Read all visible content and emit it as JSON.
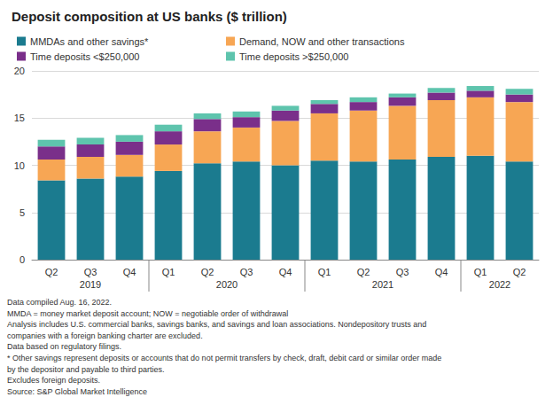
{
  "chart_data": {
    "type": "bar",
    "title": "Deposit composition at US banks ($ trillion)",
    "categories": [
      "Q2",
      "Q3",
      "Q4",
      "Q1",
      "Q2",
      "Q3",
      "Q4",
      "Q1",
      "Q2",
      "Q3",
      "Q4",
      "Q1",
      "Q2"
    ],
    "groups": [
      "2019",
      "2019",
      "2019",
      "2020",
      "2020",
      "2020",
      "2020",
      "2021",
      "2021",
      "2021",
      "2021",
      "2022",
      "2022"
    ],
    "series": [
      {
        "name": "MMDAs and other savings*",
        "color": "#1b7b8f",
        "values": [
          8.4,
          8.6,
          8.8,
          9.4,
          10.2,
          10.4,
          10.0,
          10.5,
          10.4,
          10.6,
          10.9,
          11.0,
          10.4
        ]
      },
      {
        "name": "Demand, NOW and other transactions",
        "color": "#f7a654",
        "values": [
          2.2,
          2.3,
          2.3,
          2.8,
          3.4,
          3.6,
          4.7,
          5.0,
          5.4,
          5.7,
          6.0,
          6.2,
          6.3
        ]
      },
      {
        "name": "Time deposits <$250,000",
        "color": "#7a2f8a",
        "values": [
          1.4,
          1.3,
          1.4,
          1.4,
          1.3,
          1.1,
          1.1,
          1.0,
          0.9,
          0.9,
          0.8,
          0.7,
          0.8
        ]
      },
      {
        "name": "Time deposits >$250,000",
        "color": "#5ec4ad",
        "values": [
          0.7,
          0.7,
          0.7,
          0.7,
          0.6,
          0.6,
          0.5,
          0.4,
          0.5,
          0.4,
          0.5,
          0.5,
          0.6
        ]
      }
    ],
    "ylim": [
      0,
      20
    ],
    "yticks": [
      0,
      5,
      10,
      15,
      20
    ],
    "grid": true,
    "stacked": true,
    "legend": "top",
    "notes": [
      "Data compiled Aug. 16, 2022.",
      "MMDA = money market deposit account; NOW = negotiable order of withdrawal",
      "Analysis includes U.S. commercial banks, savings banks, and savings and loan associations. Nondepository trusts and",
      "companies with a foreign banking charter are excluded.",
      "Data based on regulatory filings.",
      "* Other savings represent deposits or accounts that do not permit transfers by check, draft, debit card or similar order made",
      "by the depositor and payable to third parties.",
      "Excludes foreign deposits.",
      "Source: S&P Global Market Intelligence"
    ]
  }
}
